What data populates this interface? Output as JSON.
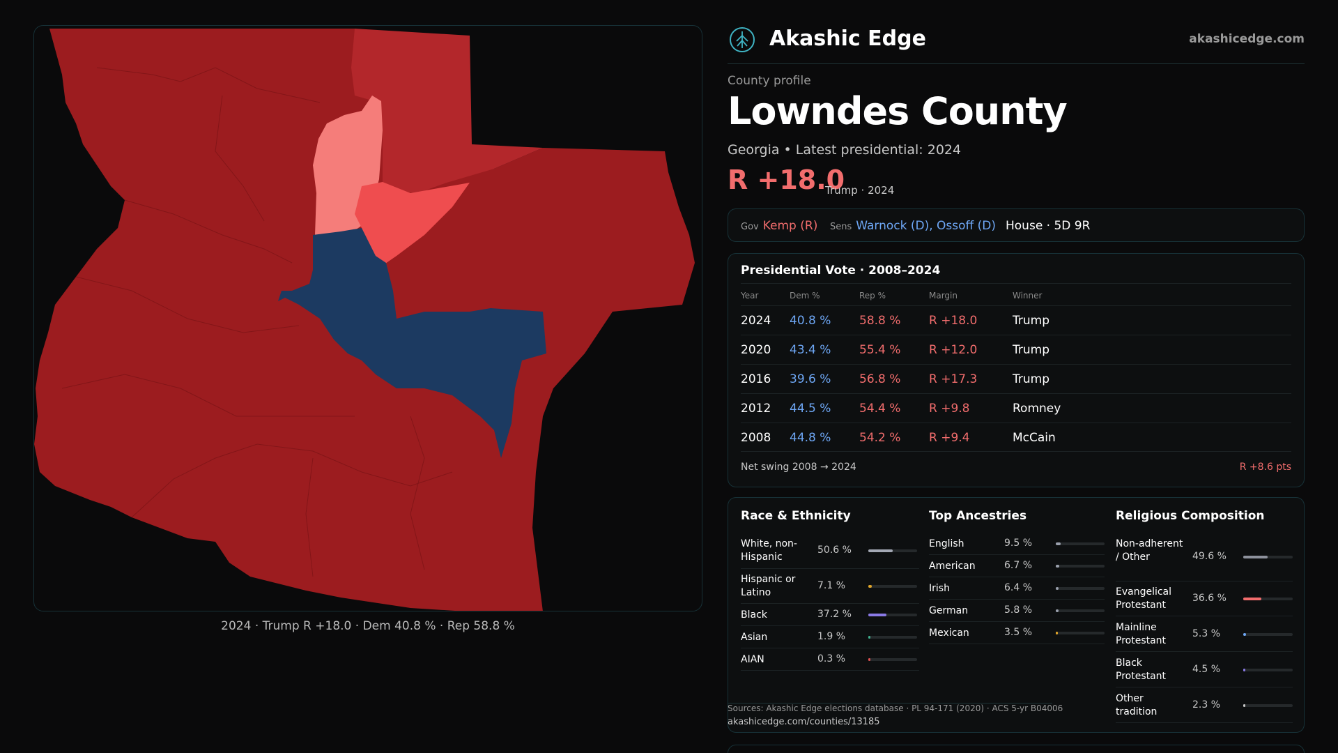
{
  "brand": {
    "name": "Akashic Edge",
    "url": "akashicedge.com",
    "logo_icon": "tree-of-life-icon"
  },
  "county": {
    "section_label": "County profile",
    "name": "Lowndes County",
    "subtitle": "Georgia • Latest presidential: 2024",
    "margin": "R +18.0",
    "margin_note": "Trump · 2024"
  },
  "officials": {
    "gov_label": "Gov",
    "gov_value": "Kemp (R)",
    "sens_label": "Sens",
    "sens_value": "Warnock (D), Ossoff (D)",
    "house_value": "House · 5D 9R"
  },
  "presidential": {
    "title": "Presidential Vote · 2008–2024",
    "headers": {
      "year": "Year",
      "dem": "Dem %",
      "rep": "Rep %",
      "margin": "Margin",
      "winner": "Winner"
    },
    "rows": [
      {
        "year": "2024",
        "dem": "40.8 %",
        "rep": "58.8 %",
        "margin": "R +18.0",
        "winner": "Trump"
      },
      {
        "year": "2020",
        "dem": "43.4 %",
        "rep": "55.4 %",
        "margin": "R +12.0",
        "winner": "Trump"
      },
      {
        "year": "2016",
        "dem": "39.6 %",
        "rep": "56.8 %",
        "margin": "R +17.3",
        "winner": "Trump"
      },
      {
        "year": "2012",
        "dem": "44.5 %",
        "rep": "54.4 %",
        "margin": "R +9.8",
        "winner": "Romney"
      },
      {
        "year": "2008",
        "dem": "44.8 %",
        "rep": "54.2 %",
        "margin": "R +9.4",
        "winner": "McCain"
      }
    ],
    "swing_label": "Net swing 2008 → 2024",
    "swing_value": "R +8.6 pts"
  },
  "race": {
    "title": "Race & Ethnicity",
    "items": [
      {
        "label": "White, non-Hispanic",
        "value": "50.6 %",
        "fraction": 0.506,
        "color": "#a3a8b4"
      },
      {
        "label": "Hispanic or Latino",
        "value": "7.1 %",
        "fraction": 0.071,
        "color": "#e0a52a"
      },
      {
        "label": "Black",
        "value": "37.2 %",
        "fraction": 0.372,
        "color": "#8a7ae6"
      },
      {
        "label": "Asian",
        "value": "1.9 %",
        "fraction": 0.019,
        "color": "#3fb08f"
      },
      {
        "label": "AIAN",
        "value": "0.3 %",
        "fraction": 0.003,
        "color": "#e05050"
      }
    ]
  },
  "ancestry": {
    "title": "Top Ancestries",
    "items": [
      {
        "label": "English",
        "value": "9.5 %",
        "fraction": 0.095,
        "color": "#9aa0ad"
      },
      {
        "label": "American",
        "value": "6.7 %",
        "fraction": 0.067,
        "color": "#9aa0ad"
      },
      {
        "label": "Irish",
        "value": "6.4 %",
        "fraction": 0.064,
        "color": "#9aa0ad"
      },
      {
        "label": "German",
        "value": "5.8 %",
        "fraction": 0.058,
        "color": "#9aa0ad"
      },
      {
        "label": "Mexican",
        "value": "3.5 %",
        "fraction": 0.035,
        "color": "#e0a52a"
      }
    ]
  },
  "religion": {
    "title": "Religious Composition",
    "items": [
      {
        "label": "Non-adherent / Other",
        "value": "49.6 %",
        "fraction": 0.496,
        "color": "#8d919c"
      },
      {
        "label": "Evangelical Protestant",
        "value": "36.6 %",
        "fraction": 0.366,
        "color": "#f26d6d"
      },
      {
        "label": "Mainline Protestant",
        "value": "5.3 %",
        "fraction": 0.053,
        "color": "#6ea7f5"
      },
      {
        "label": "Black Protestant",
        "value": "4.5 %",
        "fraction": 0.045,
        "color": "#8a7ae6"
      },
      {
        "label": "Other tradition",
        "value": "2.3 %",
        "fraction": 0.023,
        "color": "#c8c8c8"
      }
    ]
  },
  "sources": {
    "line1": "Sources: Akashic Edge elections database · PL 94-171 (2020) · ACS 5-yr B04006",
    "line2": "akashicedge.com/counties/13185"
  },
  "map": {
    "caption": "2024 · Trump R +18.0 · Dem 40.8 % · Rep 58.8 %",
    "colors": {
      "solid_r": "#9c1c1f",
      "mid_r": "#b3272b",
      "light_r": "#ef4d4f",
      "pale_r": "#f57d7a",
      "dem": "#1c3a61"
    }
  }
}
